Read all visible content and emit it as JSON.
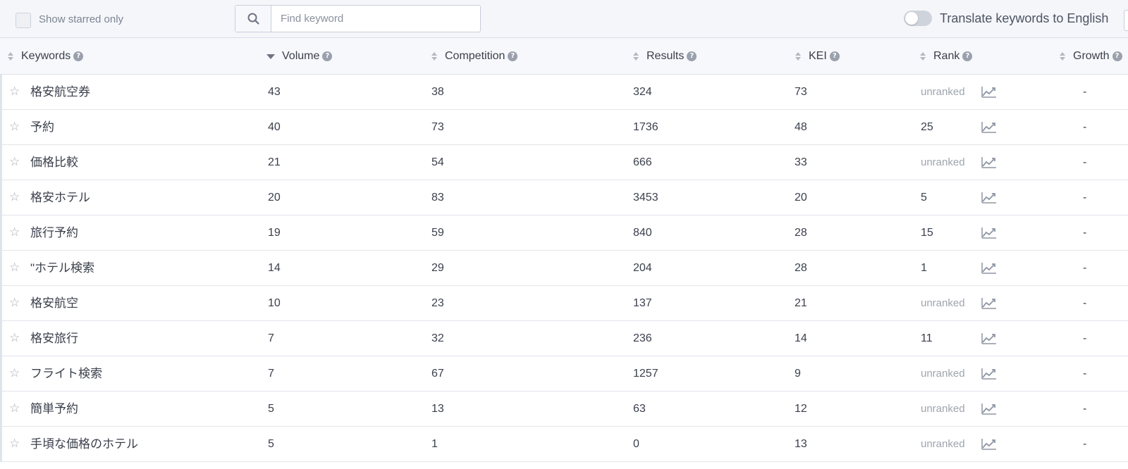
{
  "toolbar": {
    "starred_label": "Show starred only",
    "search_placeholder": "Find keyword",
    "search_value": "",
    "translate_label": "Translate keywords to English",
    "translate_on": false
  },
  "columns": {
    "keywords": "Keywords",
    "volume": "Volume",
    "competition": "Competition",
    "results": "Results",
    "kei": "KEI",
    "rank": "Rank",
    "growth": "Growth"
  },
  "icons": {
    "search": "search-icon",
    "help": "help-icon",
    "star": "star-outline-icon",
    "trend": "trend-chart-icon",
    "sort": "sort-icon"
  },
  "colors": {
    "header_bg": "#f7f8fb",
    "toolbar_bg": "#f4f6fa",
    "muted_text": "#9ea4ae"
  },
  "rows": [
    {
      "keyword": "格安航空券",
      "volume": "43",
      "competition": "38",
      "results": "324",
      "kei": "73",
      "rank": "unranked",
      "growth": "-"
    },
    {
      "keyword": "予約",
      "volume": "40",
      "competition": "73",
      "results": "1736",
      "kei": "48",
      "rank": "25",
      "growth": "-"
    },
    {
      "keyword": "価格比較",
      "volume": "21",
      "competition": "54",
      "results": "666",
      "kei": "33",
      "rank": "unranked",
      "growth": "-"
    },
    {
      "keyword": "格安ホテル",
      "volume": "20",
      "competition": "83",
      "results": "3453",
      "kei": "20",
      "rank": "5",
      "growth": "-"
    },
    {
      "keyword": "旅行予約",
      "volume": "19",
      "competition": "59",
      "results": "840",
      "kei": "28",
      "rank": "15",
      "growth": "-"
    },
    {
      "keyword": "\"ホテル検索",
      "volume": "14",
      "competition": "29",
      "results": "204",
      "kei": "28",
      "rank": "1",
      "growth": "-"
    },
    {
      "keyword": "格安航空",
      "volume": "10",
      "competition": "23",
      "results": "137",
      "kei": "21",
      "rank": "unranked",
      "growth": "-"
    },
    {
      "keyword": "格安旅行",
      "volume": "7",
      "competition": "32",
      "results": "236",
      "kei": "14",
      "rank": "11",
      "growth": "-"
    },
    {
      "keyword": "フライト検索",
      "volume": "7",
      "competition": "67",
      "results": "1257",
      "kei": "9",
      "rank": "unranked",
      "growth": "-"
    },
    {
      "keyword": "簡単予約",
      "volume": "5",
      "competition": "13",
      "results": "63",
      "kei": "12",
      "rank": "unranked",
      "growth": "-"
    },
    {
      "keyword": "手頃な価格のホテル",
      "volume": "5",
      "competition": "1",
      "results": "0",
      "kei": "13",
      "rank": "unranked",
      "growth": "-"
    }
  ]
}
